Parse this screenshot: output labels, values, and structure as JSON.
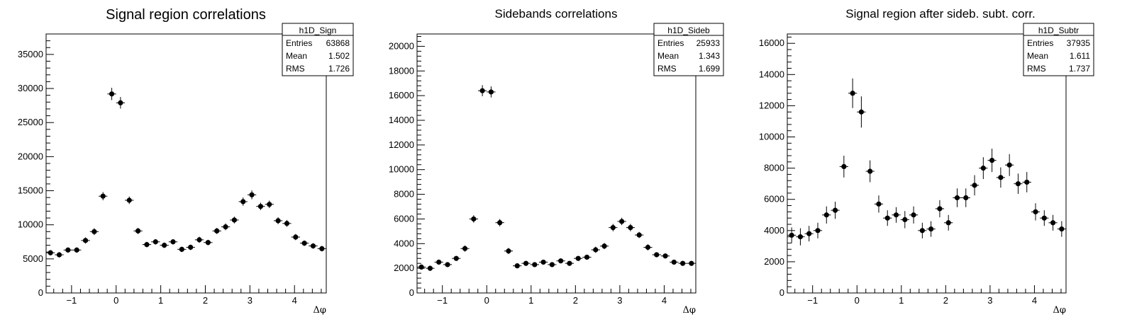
{
  "chart_data": [
    {
      "type": "scatter",
      "title": "Signal region correlations",
      "xlabel": "Δφ",
      "ylabel": "",
      "xlim": [
        -1.5708,
        4.7124
      ],
      "ylim": [
        0,
        38000
      ],
      "xticks": [
        -1,
        0,
        1,
        2,
        3,
        4
      ],
      "yticks": [
        0,
        5000,
        10000,
        15000,
        20000,
        25000,
        30000,
        35000
      ],
      "grid": false,
      "legend": "top-right",
      "statbox": {
        "name": "h1D_Sign",
        "entries_label": "Entries",
        "entries": "63868",
        "mean_label": "Mean",
        "mean": "1.502",
        "rms_label": "RMS",
        "rms": "1.726"
      },
      "bins": 32,
      "y": [
        5900,
        5600,
        6300,
        6300,
        7700,
        9000,
        14200,
        29200,
        27900,
        13600,
        9100,
        7100,
        7500,
        7000,
        7500,
        6400,
        6700,
        7800,
        7400,
        9100,
        9700,
        10700,
        13400,
        14400,
        12700,
        13000,
        10600,
        10200,
        8200,
        7300,
        6900,
        6500
      ],
      "yerr": [
        400,
        400,
        400,
        400,
        450,
        500,
        600,
        900,
        850,
        550,
        450,
        400,
        400,
        400,
        400,
        400,
        400,
        450,
        400,
        450,
        500,
        500,
        600,
        650,
        550,
        550,
        500,
        500,
        450,
        400,
        400,
        400
      ]
    },
    {
      "type": "scatter",
      "title": "Sidebands correlations",
      "xlabel": "Δφ",
      "ylabel": "",
      "xlim": [
        -1.5708,
        4.7124
      ],
      "ylim": [
        0,
        21000
      ],
      "xticks": [
        -1,
        0,
        1,
        2,
        3,
        4
      ],
      "yticks": [
        0,
        2000,
        4000,
        6000,
        8000,
        10000,
        12000,
        14000,
        16000,
        18000,
        20000
      ],
      "grid": false,
      "legend": "top-right",
      "statbox": {
        "name": "h1D_Sideb",
        "entries_label": "Entries",
        "entries": "25933",
        "mean_label": "Mean",
        "mean": "1.343",
        "rms_label": "RMS",
        "rms": "1.699"
      },
      "bins": 32,
      "y": [
        2100,
        2000,
        2500,
        2300,
        2800,
        3600,
        6000,
        16400,
        16300,
        5700,
        3400,
        2200,
        2400,
        2300,
        2500,
        2300,
        2600,
        2400,
        2800,
        2900,
        3500,
        3800,
        5300,
        5800,
        5300,
        4700,
        3700,
        3100,
        3000,
        2500,
        2400,
        2400
      ],
      "yerr": [
        200,
        200,
        200,
        200,
        200,
        250,
        300,
        450,
        450,
        300,
        250,
        200,
        200,
        200,
        200,
        200,
        200,
        200,
        200,
        200,
        250,
        250,
        300,
        300,
        300,
        250,
        250,
        200,
        200,
        200,
        200,
        200
      ]
    },
    {
      "type": "scatter",
      "title": "Signal region after sideb. subt. corr.",
      "xlabel": "Δφ",
      "ylabel": "",
      "xlim": [
        -1.5708,
        4.7124
      ],
      "ylim": [
        0,
        16600
      ],
      "xticks": [
        -1,
        0,
        1,
        2,
        3,
        4
      ],
      "yticks": [
        0,
        2000,
        4000,
        6000,
        8000,
        10000,
        12000,
        14000,
        16000
      ],
      "grid": false,
      "legend": "top-right",
      "statbox": {
        "name": "h1D_Subtr",
        "entries_label": "Entries",
        "entries": "37935",
        "mean_label": "Mean",
        "mean": "1.611",
        "rms_label": "RMS",
        "rms": "1.737"
      },
      "bins": 32,
      "y": [
        3700,
        3600,
        3800,
        4000,
        5000,
        5300,
        8100,
        12800,
        11600,
        7800,
        5700,
        4800,
        5000,
        4700,
        5000,
        4000,
        4100,
        5400,
        4500,
        6100,
        6100,
        6900,
        8000,
        8500,
        7400,
        8200,
        7000,
        7100,
        5200,
        4800,
        4500,
        4100
      ],
      "yerr": [
        500,
        550,
        500,
        500,
        550,
        550,
        700,
        950,
        1000,
        700,
        550,
        500,
        500,
        550,
        550,
        500,
        500,
        550,
        500,
        600,
        600,
        650,
        700,
        750,
        650,
        700,
        650,
        650,
        550,
        500,
        500,
        500
      ]
    }
  ]
}
